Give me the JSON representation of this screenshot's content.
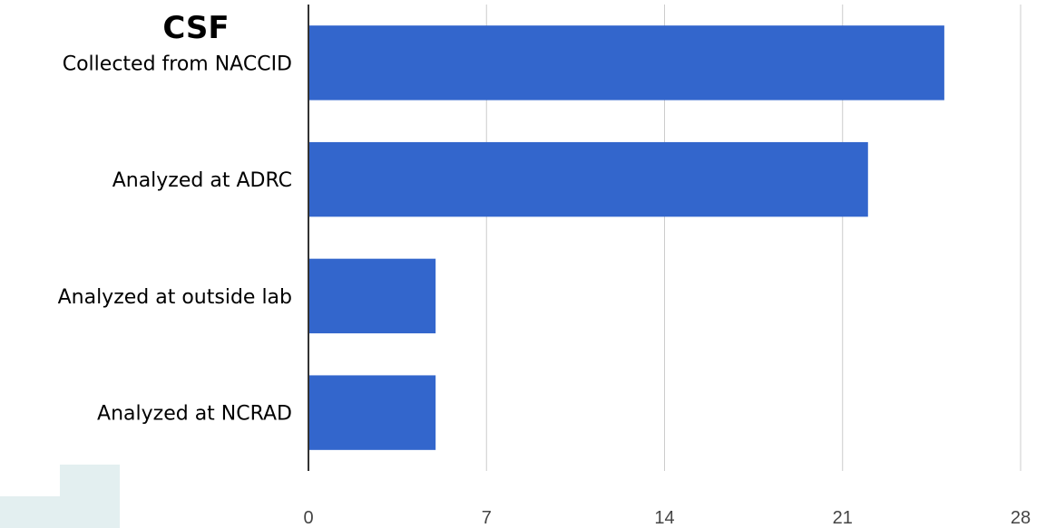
{
  "chart_data": {
    "type": "bar",
    "orientation": "horizontal",
    "title": "CSF",
    "categories": [
      "Collected from NACCID",
      "Analyzed at ADRC",
      "Analyzed at outside lab",
      "Analyzed at NCRAD"
    ],
    "values": [
      25,
      22,
      5,
      5
    ],
    "xlim": [
      0,
      28
    ],
    "xticks": [
      "0",
      "7",
      "14",
      "21",
      "28"
    ],
    "grid": true,
    "bar_color": "#3366cc",
    "grid_color": "#cccccc",
    "axis_color": "#333333"
  }
}
